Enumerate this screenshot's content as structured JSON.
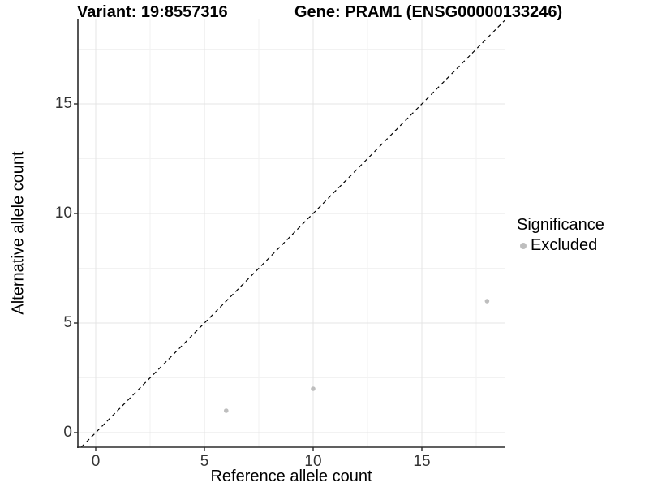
{
  "title": {
    "variant": "Variant: 19:8557316",
    "gene": "Gene: PRAM1 (ENSG00000133246)"
  },
  "axes": {
    "x": {
      "label": "Reference allele count",
      "ticks": [
        0,
        5,
        10,
        15
      ]
    },
    "y": {
      "label": "Alternative allele count",
      "ticks": [
        0,
        5,
        10,
        15
      ]
    }
  },
  "legend": {
    "title": "Significance",
    "items": [
      {
        "label": "Excluded",
        "color": "#bebebe"
      }
    ]
  },
  "chart_data": {
    "type": "scatter",
    "title": "Variant: 19:8557316 / Gene: PRAM1 (ENSG00000133246)",
    "xlabel": "Reference allele count",
    "ylabel": "Alternative allele count",
    "xlim": [
      -0.7,
      18.8
    ],
    "ylim": [
      -0.7,
      18.9
    ],
    "grid": true,
    "series": [
      {
        "name": "Excluded",
        "color": "#bebebe",
        "points": [
          [
            6,
            1
          ],
          [
            10,
            2
          ],
          [
            18,
            6
          ]
        ]
      }
    ],
    "identity_line": {
      "present": true,
      "style": "dashed",
      "color": "#000000",
      "equation": "y = x"
    }
  },
  "colors": {
    "grid_major": "#e4e4e4",
    "grid_minor": "#f2f2f2",
    "axis_line": "#2b2b2b",
    "tick_text": "#333333"
  }
}
